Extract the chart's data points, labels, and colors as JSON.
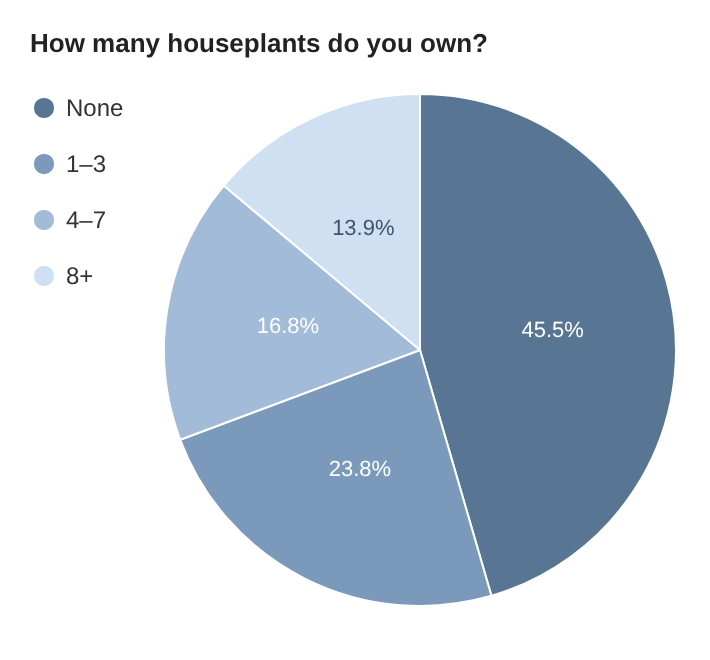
{
  "chart_data": {
    "type": "pie",
    "title": "How many houseplants do you own?",
    "categories": [
      "None",
      "1–3",
      "4–7",
      "8+"
    ],
    "values": [
      45.5,
      23.8,
      16.8,
      13.9
    ],
    "colors": [
      "#587593",
      "#7a99bb",
      "#a1bbd9",
      "#cfe0f3"
    ],
    "value_labels": [
      "45.5%",
      "23.8%",
      "16.8%",
      "13.9%"
    ],
    "legend": "top left"
  }
}
